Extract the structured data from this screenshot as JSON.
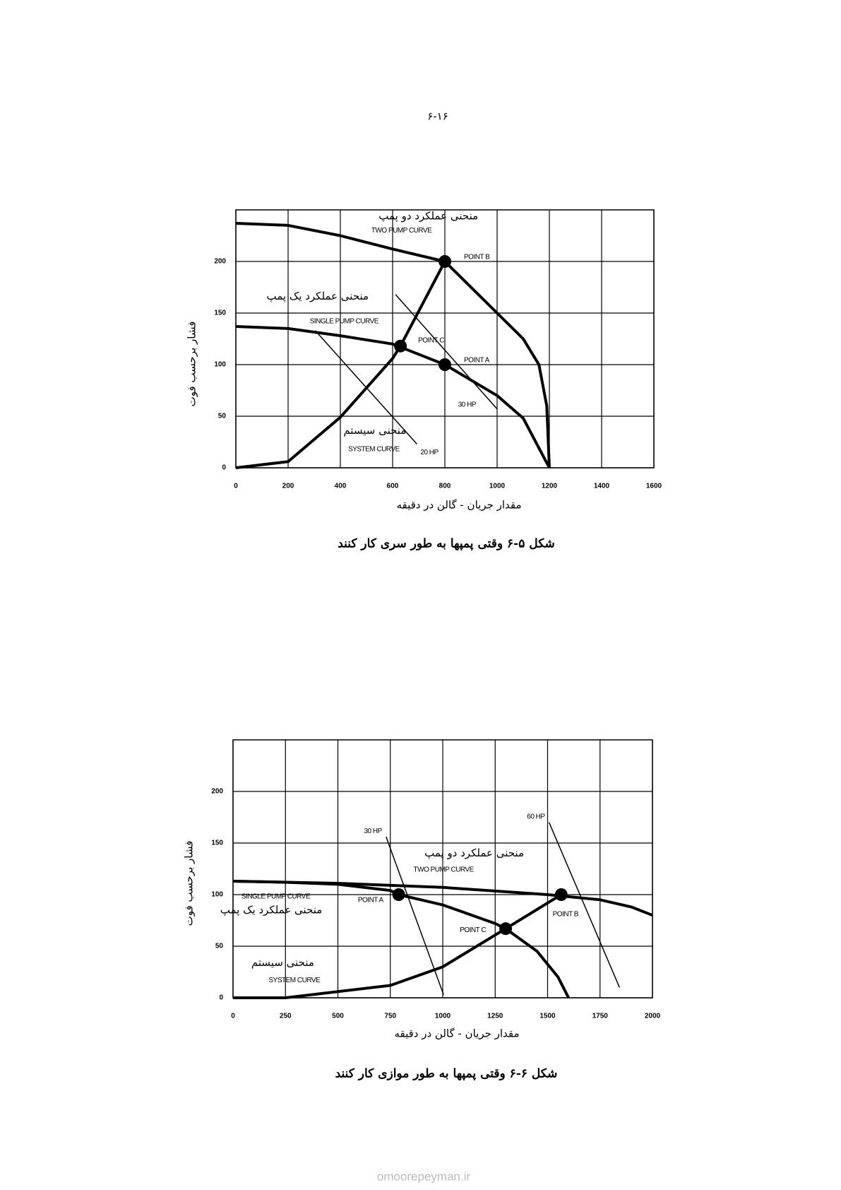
{
  "page_number": "۶-۱۶",
  "watermark": "omoorepeyman.ir",
  "chart_data": [
    {
      "type": "line",
      "caption": "شکل ۵-۶ وقتی پمپها به طور سری کار کنند",
      "xlabel": "مقدار جریان - گالن در دقیقه",
      "ylabel": "فشار برحسب فوت",
      "xlim": [
        0,
        1600
      ],
      "ylim": [
        0,
        250
      ],
      "xticks": [
        0,
        200,
        400,
        600,
        800,
        1000,
        1200,
        1400,
        1600
      ],
      "yticks": [
        0,
        50,
        100,
        150,
        200
      ],
      "grid": true,
      "series": [
        {
          "name": "TWO PUMP CURVE",
          "color": "#000000",
          "x": [
            0,
            200,
            400,
            600,
            800,
            1000,
            1100,
            1160,
            1190,
            1200
          ],
          "values": [
            237,
            235,
            225,
            212,
            200,
            150,
            125,
            100,
            60,
            0
          ]
        },
        {
          "name": "SINGLE PUMP CURVE",
          "color": "#000000",
          "x": [
            0,
            200,
            400,
            600,
            800,
            1000,
            1100,
            1200
          ],
          "values": [
            137,
            135,
            128,
            120,
            100,
            70,
            48,
            0
          ]
        },
        {
          "name": "SYSTEM CURVE",
          "color": "#000000",
          "x": [
            0,
            200,
            400,
            600,
            630,
            800
          ],
          "values": [
            0,
            6,
            49,
            106,
            118,
            200
          ]
        }
      ],
      "points": [
        {
          "label": "POINT B",
          "x": 800,
          "y": 200
        },
        {
          "label": "POINT C",
          "x": 630,
          "y": 118
        },
        {
          "label": "POINT A",
          "x": 800,
          "y": 100
        }
      ],
      "hp_lines": [
        {
          "label": "20 HP",
          "x": [
            304,
            693
          ],
          "values": [
            133,
            23
          ]
        },
        {
          "label": "30 HP",
          "x": [
            611,
            1000
          ],
          "values": [
            168,
            57
          ]
        }
      ],
      "annotations": [
        "منحنی عملکرد دو پمپ",
        "منحنی عملکرد یک پمپ",
        "منحنی سیستم"
      ]
    },
    {
      "type": "line",
      "caption": "شکل ۶-۶ وقتی پمپها به طور موازی کار کنند",
      "xlabel": "مقدار جریان - گالن در دقیقه",
      "ylabel": "فشار برحسب فوت",
      "xlim": [
        0,
        2000
      ],
      "ylim": [
        0,
        250
      ],
      "xticks": [
        0,
        250,
        500,
        750,
        1000,
        1250,
        1500,
        1750,
        2000
      ],
      "yticks": [
        0,
        50,
        100,
        150,
        200
      ],
      "grid": true,
      "series": [
        {
          "name": "TWO PUMP CURVE",
          "color": "#000000",
          "x": [
            0,
            500,
            1000,
            1500,
            1750,
            1900,
            2000
          ],
          "values": [
            113,
            111,
            107,
            100,
            95,
            88,
            80
          ]
        },
        {
          "name": "SINGLE PUMP CURVE",
          "color": "#000000",
          "x": [
            0,
            250,
            500,
            750,
            790,
            1000,
            1250,
            1300,
            1450,
            1550,
            1600
          ],
          "values": [
            113,
            112,
            110,
            104,
            100,
            90,
            72,
            67,
            45,
            20,
            0
          ]
        },
        {
          "name": "SYSTEM CURVE",
          "color": "#000000",
          "x": [
            0,
            250,
            750,
            1000,
            1300,
            1565
          ],
          "values": [
            0,
            0,
            12,
            30,
            67,
            100
          ]
        }
      ],
      "points": [
        {
          "label": "POINT A",
          "x": 790,
          "y": 100
        },
        {
          "label": "POINT C",
          "x": 1300,
          "y": 67
        },
        {
          "label": "POINT B",
          "x": 1565,
          "y": 100
        }
      ],
      "hp_lines": [
        {
          "label": "30 HP",
          "x": [
            730,
            1004
          ],
          "values": [
            156,
            3
          ]
        },
        {
          "label": "60 HP",
          "x": [
            1507,
            1843
          ],
          "values": [
            170,
            10
          ]
        }
      ],
      "annotations": [
        "منحنی عملکرد دو پمپ",
        "منحنی عملکرد یک پمپ",
        "منحنی سیستم"
      ]
    }
  ]
}
